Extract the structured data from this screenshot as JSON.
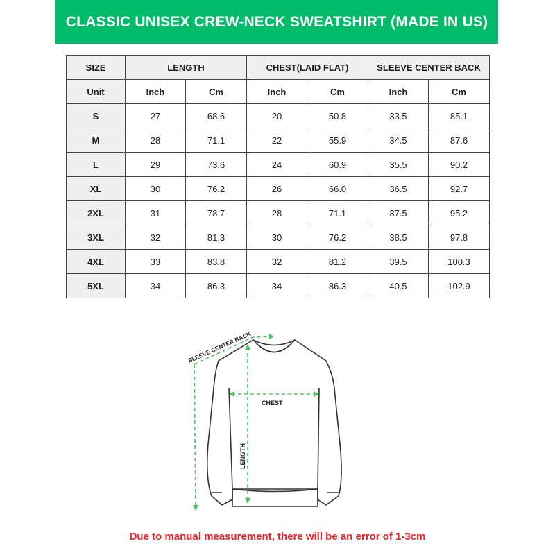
{
  "title": "CLASSIC UNISEX CREW-NECK SWEATSHIRT (MADE IN US)",
  "table": {
    "headers": [
      "SIZE",
      "LENGTH",
      "CHEST(LAID FLAT)",
      "SLEEVE CENTER BACK"
    ],
    "units": [
      "Unit",
      "Inch",
      "Cm",
      "Inch",
      "Cm",
      "Inch",
      "Cm"
    ],
    "rows": [
      [
        "S",
        "27",
        "68.6",
        "20",
        "50.8",
        "33.5",
        "85.1"
      ],
      [
        "M",
        "28",
        "71.1",
        "22",
        "55.9",
        "34.5",
        "87.6"
      ],
      [
        "L",
        "29",
        "73.6",
        "24",
        "60.9",
        "35.5",
        "90.2"
      ],
      [
        "XL",
        "30",
        "76.2",
        "26",
        "66.0",
        "36.5",
        "92.7"
      ],
      [
        "2XL",
        "31",
        "78.7",
        "28",
        "71.1",
        "37.5",
        "95.2"
      ],
      [
        "3XL",
        "32",
        "81.3",
        "30",
        "76.2",
        "38.5",
        "97.8"
      ],
      [
        "4XL",
        "33",
        "83.8",
        "32",
        "81.2",
        "39.5",
        "100.3"
      ],
      [
        "5XL",
        "34",
        "86.3",
        "34",
        "86.3",
        "40.5",
        "102.9"
      ]
    ]
  },
  "diagram": {
    "sleeve_label": "SLEEVE CENTER BACK",
    "chest_label": "CHEST",
    "length_label": "LENGTH",
    "arrow_color": "#4cc35c"
  },
  "note": "Due to manual measurement, there will be an error of 1-3cm",
  "colors": {
    "banner": "#00bb6a",
    "note": "#e8232a"
  }
}
